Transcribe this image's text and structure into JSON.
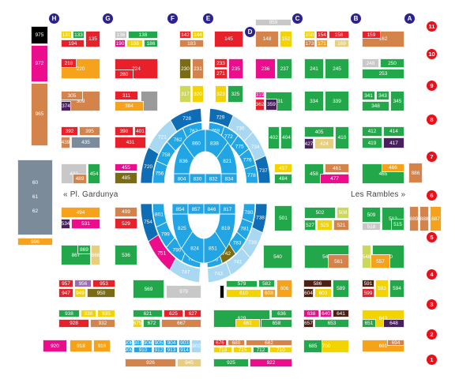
{
  "palette": {
    "black": "#000000",
    "pink": "#ec0d8c",
    "tan": "#d4834a",
    "slate": "#7b8b9a",
    "orange": "#f7a21b",
    "yellow": "#f3d400",
    "green": "#22a84a",
    "red": "#e8202a",
    "gray": "#c8c8c8",
    "darkgray": "#9a9a9a",
    "lightyellow": "#e8cf7e",
    "olive": "#7a6c14",
    "purple": "#4a1f5e",
    "lime": "#cbd85a",
    "lavender": "#9b6bb5",
    "darkbrown": "#4e2012",
    "dark": "#0f6db5",
    "blue": "#22a5e5",
    "light": "#a9d8f2"
  },
  "columns": [
    "H",
    "G",
    "F",
    "E",
    "D",
    "C",
    "B",
    "A"
  ],
  "rows": [
    "11",
    "10",
    "9",
    "8",
    "7",
    "6",
    "5",
    "4",
    "3",
    "2",
    "1"
  ],
  "streets": {
    "left": "« Pl. Gardunya",
    "right": "Les Rambles »"
  },
  "stalls": [
    [
      "975",
      "black"
    ],
    [
      "972",
      "pink"
    ],
    [
      "965",
      "tan"
    ],
    [
      "60\n61\n62",
      "slate"
    ],
    [
      "996",
      "orange"
    ],
    [
      "131",
      "yellow"
    ],
    [
      "133",
      "green"
    ],
    [
      "135",
      "red"
    ],
    [
      "194",
      "red"
    ],
    [
      "136",
      "gray"
    ],
    [
      "138",
      "green"
    ],
    [
      "190",
      "pink"
    ],
    [
      "188",
      "yellow"
    ],
    [
      "186",
      "green"
    ],
    [
      "142",
      "red"
    ],
    [
      "144",
      "yellow"
    ],
    [
      "183",
      "tan"
    ],
    [
      "145",
      "red"
    ],
    [
      "959",
      "gray"
    ],
    [
      "148",
      "tan"
    ],
    [
      "152",
      "yellow"
    ],
    [
      "150",
      "yellow"
    ],
    [
      "154",
      "red"
    ],
    [
      "156",
      "red"
    ],
    [
      "173",
      "tan"
    ],
    [
      "171",
      "orange"
    ],
    [
      "169",
      "lightyellow"
    ],
    [
      "162",
      "tan"
    ],
    [
      "159",
      "red"
    ],
    [
      "220",
      "orange"
    ],
    [
      "218",
      "red"
    ],
    [
      "224",
      "red"
    ],
    [
      "280",
      "red"
    ],
    [
      "230",
      "olive"
    ],
    [
      "231",
      "tan"
    ],
    [
      "233",
      "red"
    ],
    [
      "271",
      "red"
    ],
    [
      "235",
      "pink"
    ],
    [
      "236",
      "pink"
    ],
    [
      "237",
      "green"
    ],
    [
      "241",
      "green"
    ],
    [
      "245",
      "green"
    ],
    [
      "248",
      "gray"
    ],
    [
      "250",
      "green"
    ],
    [
      "253",
      "green"
    ],
    [
      "309",
      "tan"
    ],
    [
      "305",
      "tan"
    ],
    [
      "374",
      "purple"
    ],
    [
      "",
      "darkgray"
    ],
    [
      "311",
      "red"
    ],
    [
      "384",
      "orange"
    ],
    [
      "317",
      "lime"
    ],
    [
      "320",
      "yellow"
    ],
    [
      "323",
      "yellow"
    ],
    [
      "325",
      "green"
    ],
    [
      "331",
      "green"
    ],
    [
      "319",
      "pink"
    ],
    [
      "362",
      "red"
    ],
    [
      "359",
      "purple"
    ],
    [
      "334",
      "green"
    ],
    [
      "339",
      "green"
    ],
    [
      "341",
      "green"
    ],
    [
      "343",
      "green"
    ],
    [
      "348",
      "green"
    ],
    [
      "345",
      "green"
    ],
    [
      "392",
      "red"
    ],
    [
      "395",
      "tan"
    ],
    [
      "439",
      "tan"
    ],
    [
      "435",
      "slate"
    ],
    [
      "398",
      "red"
    ],
    [
      "401",
      "red"
    ],
    [
      "431",
      "red"
    ],
    [
      "402",
      "green"
    ],
    [
      "404",
      "green"
    ],
    [
      "405",
      "green"
    ],
    [
      "427",
      "purple"
    ],
    [
      "424",
      "lightyellow"
    ],
    [
      "410",
      "green"
    ],
    [
      "412",
      "green"
    ],
    [
      "414",
      "green"
    ],
    [
      "419",
      "green"
    ],
    [
      "417",
      "purple"
    ],
    [
      "402",
      "gray"
    ],
    [
      "489",
      "tan"
    ],
    [
      "454",
      "green"
    ],
    [
      "455",
      "pink"
    ],
    [
      "485",
      "olive"
    ],
    [
      "457",
      "yellow"
    ],
    [
      "484",
      "green"
    ],
    [
      "458",
      "green"
    ],
    [
      "461",
      "tan"
    ],
    [
      "477",
      "pink"
    ],
    [
      "465",
      "green"
    ],
    [
      "466",
      "orange"
    ],
    [
      "886",
      "tan"
    ],
    [
      "494",
      "orange"
    ],
    [
      "534",
      "purple"
    ],
    [
      "531",
      "pink"
    ],
    [
      "499",
      "tan"
    ],
    [
      "529",
      "red"
    ],
    [
      "501",
      "green"
    ],
    [
      "502",
      "green"
    ],
    [
      "508",
      "lime"
    ],
    [
      "527",
      "green"
    ],
    [
      "525",
      "yellow"
    ],
    [
      "521",
      "tan"
    ],
    [
      "509",
      "green"
    ],
    [
      "518",
      "gray"
    ],
    [
      "512",
      "green"
    ],
    [
      "515",
      "green"
    ],
    [
      "889",
      "tan"
    ],
    [
      "888",
      "tan"
    ],
    [
      "887",
      "orange"
    ],
    [
      "867",
      "green"
    ],
    [
      "869",
      "green"
    ],
    [
      "866",
      "lightyellow"
    ],
    [
      "536",
      "green"
    ],
    [
      "540",
      "green"
    ],
    [
      "543",
      "green"
    ],
    [
      "561",
      "tan"
    ],
    [
      "550",
      "green"
    ],
    [
      "548",
      "lime"
    ],
    [
      "557",
      "orange"
    ],
    [
      "957",
      "red"
    ],
    [
      "956",
      "lavender"
    ],
    [
      "953",
      "red"
    ],
    [
      "947",
      "red"
    ],
    [
      "949",
      "yellow"
    ],
    [
      "950",
      "olive"
    ],
    [
      "569",
      "green"
    ],
    [
      "979",
      "gray"
    ],
    [
      "",
      "black"
    ],
    [
      "579",
      "green"
    ],
    [
      "582",
      "green"
    ],
    [
      "610",
      "yellow"
    ],
    [
      "608",
      "orange"
    ],
    [
      "606",
      "orange"
    ],
    [
      "586",
      "darkbrown"
    ],
    [
      "604",
      "darkbrown"
    ],
    [
      "603",
      "yellow"
    ],
    [
      "589",
      "green"
    ],
    [
      "591",
      "darkbrown"
    ],
    [
      "599",
      "red"
    ],
    [
      "593",
      "yellow"
    ],
    [
      "594",
      "green"
    ],
    [
      "938",
      "green"
    ],
    [
      "936",
      "yellow"
    ],
    [
      "935",
      "yellow"
    ],
    [
      "928",
      "red"
    ],
    [
      "932",
      "tan"
    ],
    [
      "621",
      "green"
    ],
    [
      "625",
      "red"
    ],
    [
      "627",
      "red"
    ],
    [
      "675",
      "yellow"
    ],
    [
      "672",
      "green"
    ],
    [
      "667",
      "tan"
    ],
    [
      "629",
      "green"
    ],
    [
      "636",
      "green"
    ],
    [
      "661",
      "yellow"
    ],
    [
      "658",
      "green"
    ],
    [
      "638",
      "pink"
    ],
    [
      "640",
      "pink"
    ],
    [
      "641",
      "darkbrown"
    ],
    [
      "657",
      "darkbrown"
    ],
    [
      "653",
      "green"
    ],
    [
      "643",
      "yellow"
    ],
    [
      "651",
      "green"
    ],
    [
      "648",
      "purple"
    ],
    [
      "920",
      "pink"
    ],
    [
      "918",
      "orange"
    ],
    [
      "916",
      "orange"
    ],
    [
      "908",
      "blue"
    ],
    [
      "907",
      "blue"
    ],
    [
      "906",
      "blue"
    ],
    [
      "905",
      "blue"
    ],
    [
      "904",
      "blue"
    ],
    [
      "903",
      "blue"
    ],
    [
      "909",
      "blue"
    ],
    [
      "910",
      "blue"
    ],
    [
      "912",
      "blue"
    ],
    [
      "913",
      "blue"
    ],
    [
      "914",
      "blue"
    ],
    [
      "902",
      "light"
    ],
    [
      "676",
      "red"
    ],
    [
      "680",
      "tan"
    ],
    [
      "682",
      "tan"
    ],
    [
      "718",
      "yellow"
    ],
    [
      "715",
      "yellow"
    ],
    [
      "712",
      "green"
    ],
    [
      "710",
      "yellow"
    ],
    [
      "700",
      "yellow"
    ],
    [
      "685",
      "green"
    ],
    [
      "691",
      "orange"
    ],
    [
      "694",
      "tan"
    ],
    [
      "926",
      "tan"
    ],
    [
      "945",
      "lightyellow"
    ],
    [
      "925",
      "green"
    ],
    [
      "922",
      "pink"
    ]
  ],
  "oval": {
    "upper": {
      "outer_left": [
        [
          "720",
          "dark"
        ],
        [
          "721",
          "light"
        ],
        [
          "728",
          "dark"
        ]
      ],
      "outer_right": [
        [
          "729",
          "dark"
        ],
        [
          "730",
          "light"
        ],
        [
          "734",
          "light"
        ],
        [
          "737",
          "dark"
        ]
      ],
      "middle_left": [
        [
          "756",
          "blue"
        ],
        [
          "758",
          "blue"
        ],
        [
          "762",
          "blue"
        ],
        [
          "767",
          "blue"
        ]
      ],
      "middle_right": [
        [
          "769",
          "blue"
        ],
        [
          "772",
          "blue"
        ],
        [
          "775",
          "blue"
        ],
        [
          "776",
          "blue"
        ],
        [
          "778",
          "blue"
        ]
      ],
      "core": [
        [
          "836",
          "blue"
        ],
        [
          "860",
          "blue"
        ],
        [
          "838",
          "blue"
        ],
        [
          "821",
          "blue"
        ]
      ],
      "base": [
        "804",
        "830",
        "832",
        "834"
      ]
    },
    "lower": {
      "outer_left": [
        [
          "754",
          "dark"
        ],
        [
          "751",
          "pink"
        ],
        [
          "747",
          "light"
        ]
      ],
      "outer_right": [
        [
          "743",
          "light"
        ],
        [
          "741",
          "light"
        ],
        [
          "739",
          "light"
        ],
        [
          "738",
          "dark"
        ]
      ],
      "middle_left": [
        [
          "801",
          "blue"
        ],
        [
          "799",
          "blue"
        ],
        [
          "790",
          "blue"
        ],
        [
          "792",
          "blue"
        ]
      ],
      "middle_right": [
        [
          "786",
          "blue"
        ],
        [
          "742",
          "olive"
        ],
        [
          "783",
          "blue"
        ],
        [
          "781",
          "blue"
        ],
        [
          "780",
          "blue"
        ]
      ],
      "core": [
        [
          "825",
          "blue"
        ],
        [
          "824",
          "blue"
        ],
        [
          "851",
          "blue"
        ],
        [
          "819",
          "blue"
        ]
      ],
      "base": [
        "854",
        "857",
        "846",
        "817"
      ]
    }
  }
}
